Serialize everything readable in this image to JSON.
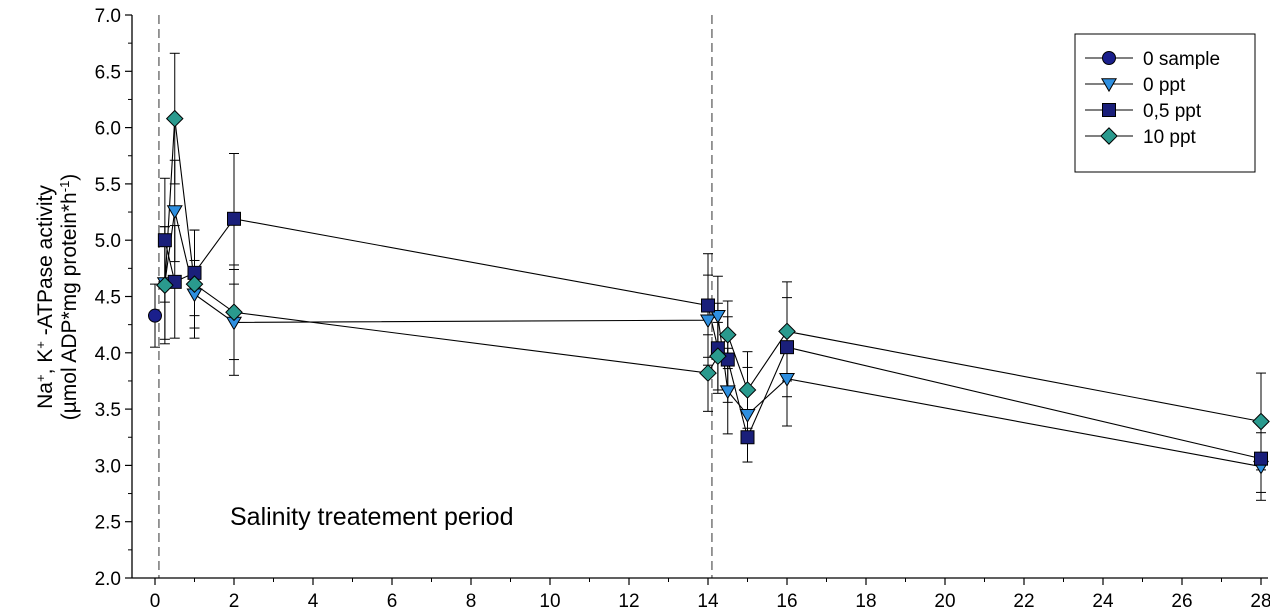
{
  "chart_data": {
    "type": "scatter",
    "xlabel": "",
    "ylabel_line1_parts": [
      "Na",
      "+",
      ", K",
      "+",
      " -ATPase activity"
    ],
    "ylabel_line2_parts": [
      "(µmol ADP*mg protein*h",
      "-1",
      ")"
    ],
    "xlim": [
      -0.5,
      28
    ],
    "ylim": [
      2.0,
      7.0
    ],
    "xticks": [
      "0",
      "2",
      "4",
      "6",
      "8",
      "10",
      "12",
      "14",
      "16",
      "18",
      "20",
      "22",
      "24",
      "26",
      "28"
    ],
    "yticks": [
      "2.0",
      "2.5",
      "3.0",
      "3.5",
      "4.0",
      "4.5",
      "5.0",
      "5.5",
      "6.0",
      "6.5",
      "7.0"
    ],
    "vlines": [
      0.1,
      14.1
    ],
    "annotation": "Salinity treatement period",
    "legend_position": "top-right",
    "series": [
      {
        "name": "0 sample",
        "marker": "circle",
        "color": "#1a1f8c",
        "points": [
          {
            "x": 0,
            "y": 4.33,
            "err": 0.28
          }
        ]
      },
      {
        "name": "0 ppt",
        "marker": "triangle-down",
        "color": "#2e8fe0",
        "points": [
          {
            "x": 0.25,
            "y": 4.62,
            "err": 0.5
          },
          {
            "x": 0.5,
            "y": 5.26,
            "err": 0.45
          },
          {
            "x": 1,
            "y": 4.52,
            "err": 0.3
          },
          {
            "x": 2,
            "y": 4.27,
            "err": 0.47
          },
          {
            "x": 14,
            "y": 4.29,
            "err": 0.4
          },
          {
            "x": 14.25,
            "y": 4.33,
            "err": 0.35
          },
          {
            "x": 14.5,
            "y": 3.66,
            "err": 0.38
          },
          {
            "x": 15,
            "y": 3.45,
            "err": 0.42
          },
          {
            "x": 16,
            "y": 3.77,
            "err": 0.42
          },
          {
            "x": 28,
            "y": 2.99,
            "err": 0.3
          }
        ]
      },
      {
        "name": "0,5 ppt",
        "marker": "square",
        "color": "#1a1f7a",
        "points": [
          {
            "x": 0.25,
            "y": 5.0,
            "err": 0.55
          },
          {
            "x": 0.5,
            "y": 4.63,
            "err": 0.5
          },
          {
            "x": 1,
            "y": 4.71,
            "err": 0.38
          },
          {
            "x": 2,
            "y": 5.19,
            "err": 0.58
          },
          {
            "x": 14,
            "y": 4.42,
            "err": 0.46
          },
          {
            "x": 14.25,
            "y": 4.04,
            "err": 0.4
          },
          {
            "x": 14.5,
            "y": 3.94,
            "err": 0.38
          },
          {
            "x": 15,
            "y": 3.25,
            "err": 0.22
          },
          {
            "x": 16,
            "y": 4.05,
            "err": 0.44
          },
          {
            "x": 28,
            "y": 3.06,
            "err": 0.3
          }
        ]
      },
      {
        "name": "10 ppt",
        "marker": "diamond",
        "color": "#2a9a8e",
        "points": [
          {
            "x": 0.25,
            "y": 4.6,
            "err": 0.52
          },
          {
            "x": 0.5,
            "y": 6.08,
            "err": 0.58
          },
          {
            "x": 1,
            "y": 4.61,
            "err": 0.48
          },
          {
            "x": 2,
            "y": 4.36,
            "err": 0.42
          },
          {
            "x": 14,
            "y": 3.82,
            "err": 0.34
          },
          {
            "x": 14.25,
            "y": 3.97,
            "err": 0.3
          },
          {
            "x": 14.5,
            "y": 4.16,
            "err": 0.3
          },
          {
            "x": 15,
            "y": 3.67,
            "err": 0.34
          },
          {
            "x": 16,
            "y": 4.19,
            "err": 0.44
          },
          {
            "x": 28,
            "y": 3.39,
            "err": 0.43
          }
        ]
      }
    ]
  }
}
